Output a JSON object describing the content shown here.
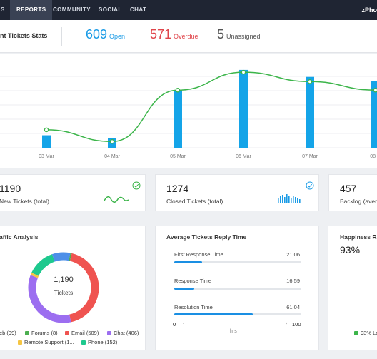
{
  "nav": {
    "items": [
      {
        "label": "S"
      },
      {
        "label": "REPORTS"
      },
      {
        "label": "COMMUNITY"
      },
      {
        "label": "SOCIAL"
      },
      {
        "label": "CHAT"
      }
    ],
    "brand": "zPho"
  },
  "stats": {
    "title": "nt  Tickets  Stats",
    "open": {
      "value": "609",
      "label": "Open",
      "color": "#1a9be6"
    },
    "overdue": {
      "value": "571",
      "label": "Overdue",
      "color": "#e0454b"
    },
    "unassigned": {
      "value": "5",
      "label": "Unassigned",
      "color": "#555555"
    }
  },
  "chart_data": {
    "type": "bar",
    "categories": [
      "03 Mar",
      "04 Mar",
      "05 Mar",
      "06 Mar",
      "07 Mar",
      "08 M"
    ],
    "series": [
      {
        "values": [
          0.16,
          0.12,
          0.74,
          1.0,
          0.91,
          0.86
        ],
        "color": "#14a4e8"
      },
      {
        "values": [
          0.23,
          0.08,
          0.74,
          0.97,
          0.85,
          0.74
        ],
        "color": "#3cb54a"
      }
    ],
    "ylim": [
      0,
      1.1
    ]
  },
  "kpis": [
    {
      "value": "1190",
      "label": "New Tickets (total)"
    },
    {
      "value": "1274",
      "label": "Closed  Tickets  (total)"
    },
    {
      "value": "457",
      "label": "Backlog (avera"
    }
  ],
  "traffic": {
    "title": "affic Analysis",
    "center_value": "1,190",
    "center_label": "Tickets",
    "segments": [
      {
        "label": "eb (99)",
        "value": 99,
        "color": "#4d8fe8"
      },
      {
        "label": "Forums (8)",
        "value": 8,
        "color": "#4caf50"
      },
      {
        "label": "Email (509)",
        "value": 509,
        "color": "#ef5350"
      },
      {
        "label": "Chat (406)",
        "value": 406,
        "color": "#9c6ef0"
      },
      {
        "label": "Remote Support (1...",
        "value": 16,
        "color": "#f5c542"
      },
      {
        "label": "Phone (152)",
        "value": 152,
        "color": "#1ec98e"
      }
    ]
  },
  "reply": {
    "title": "Average  Tickets  Reply Time",
    "rows": [
      {
        "label": "First Response Time",
        "value": "21:06",
        "fraction": 0.22
      },
      {
        "label": "Response Time",
        "value": "16:59",
        "fraction": 0.16
      },
      {
        "label": "Resolution Time",
        "value": "61:04",
        "fraction": 0.62
      }
    ],
    "scale_min": "0",
    "scale_max": "100",
    "scale_unit": "hrs"
  },
  "happiness": {
    "title": "Happiness Ra",
    "value": "93%",
    "legend": "93% Lo",
    "legend_color": "#3cb54a"
  }
}
